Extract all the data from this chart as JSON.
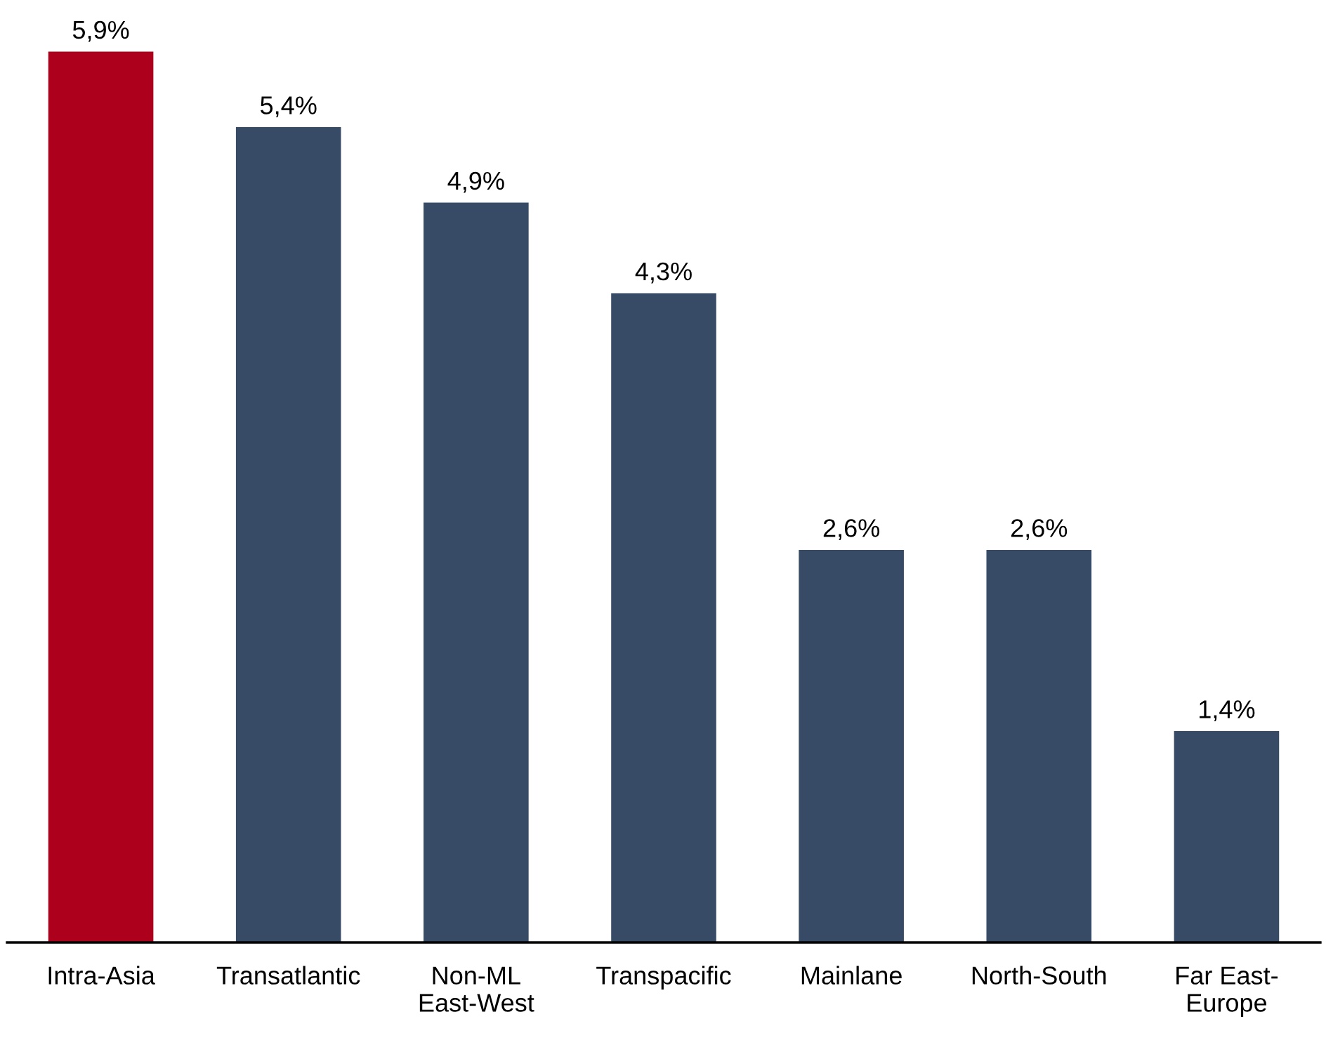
{
  "chart_data": {
    "type": "bar",
    "categories": [
      "Intra-Asia",
      "Transatlantic",
      "Non-ML\nEast-West",
      "Transpacific",
      "Mainlane",
      "North-South",
      "Far East-\nEurope"
    ],
    "values": [
      5.9,
      5.4,
      4.9,
      4.3,
      2.6,
      2.6,
      1.4
    ],
    "colors": [
      "#ad001d",
      "#374b66",
      "#374b66",
      "#374b66",
      "#374b66",
      "#374b66",
      "#374b66"
    ],
    "value_labels": [
      "5,9%",
      "5,4%",
      "4,9%",
      "4,3%",
      "2,6%",
      "2,6%",
      "1,4%"
    ],
    "tick_labels": "x"
  }
}
